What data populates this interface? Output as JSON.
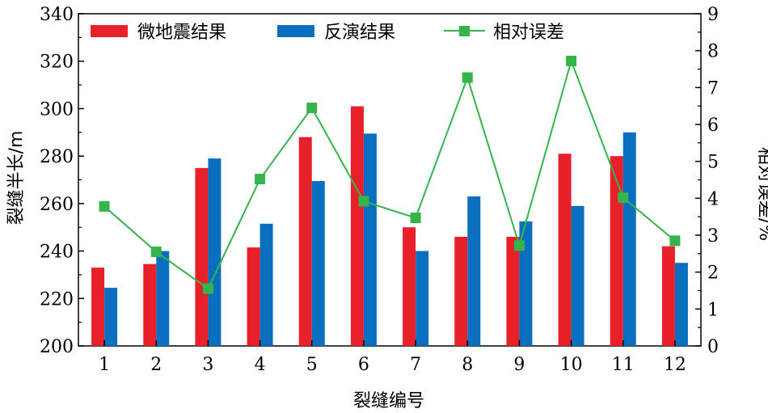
{
  "chart_data": {
    "type": "bar",
    "categories": [
      "1",
      "2",
      "3",
      "4",
      "5",
      "6",
      "7",
      "8",
      "9",
      "10",
      "11",
      "12"
    ],
    "xlabel": "裂缝编号",
    "ylabel": "裂缝半长/m",
    "y2label": "相对误差/%",
    "ylim": [
      200,
      340
    ],
    "y2lim": [
      0,
      9
    ],
    "yticks": [
      "200",
      "220",
      "240",
      "260",
      "280",
      "300",
      "320",
      "340"
    ],
    "y2ticks": [
      "0",
      "1",
      "2",
      "3",
      "4",
      "5",
      "6",
      "7",
      "8",
      "9"
    ],
    "series": [
      {
        "name": "微地震结果",
        "type": "bar",
        "axis": "left",
        "color": "#e8202a",
        "values": [
          233,
          234.5,
          275,
          241.5,
          288,
          301,
          250,
          246,
          246,
          281,
          280,
          242
        ]
      },
      {
        "name": "反演结果",
        "type": "bar",
        "axis": "left",
        "color": "#0a6fbf",
        "values": [
          224.5,
          240,
          279,
          251.5,
          269.5,
          289.5,
          240,
          263,
          252.5,
          259,
          290,
          235
        ]
      },
      {
        "name": "相对误差",
        "type": "line",
        "axis": "right",
        "color": "#34b44a",
        "values": [
          3.78,
          2.55,
          1.55,
          4.52,
          6.45,
          3.92,
          3.47,
          7.27,
          2.72,
          7.72,
          4.02,
          2.85
        ]
      }
    ],
    "legend_position": "top"
  }
}
